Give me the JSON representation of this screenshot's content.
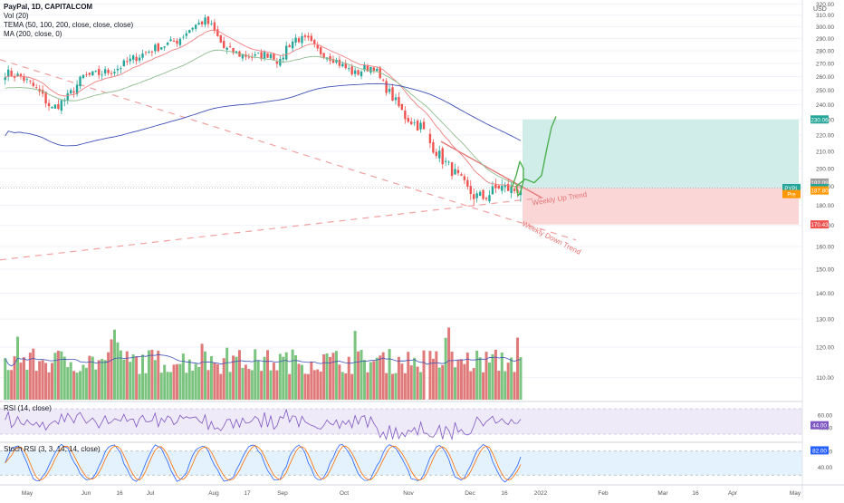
{
  "header": {
    "title": "PayPal, 1D, CAPITALCOM",
    "indicators": [
      "Vol (20)",
      "TEMA (50, 100, 200, close, close, close)",
      "MA (200, close, 0)"
    ]
  },
  "currency": "USD",
  "rsi_label": "RSI (14, close)",
  "stoch_label": "Stoch RSI (3, 3, 14, 14, close)",
  "symbol_tag": "PYPL",
  "pre_tag": "Pre",
  "colors": {
    "up": "#26a69a",
    "down": "#ef5350",
    "vol_up": "#7bc47f",
    "vol_down": "#e07a7a",
    "ema_red": "#f08080",
    "ema_green": "#8fbc8f",
    "ma_blue": "#3f51b5",
    "rsi_line": "#7e57c2",
    "stoch_k": "#2962ff",
    "stoch_d": "#ff6d00",
    "target_zone": "#d1ede9",
    "stop_zone": "#fbd6d6",
    "projection": "#4caf50"
  },
  "chart_data": [
    {
      "type": "candlestick",
      "name": "PayPal, 1D, CAPITALCOM",
      "currency": "USD",
      "y_scale": "log",
      "ylim": [
        103,
        322
      ],
      "y_ticks": [
        110,
        120,
        130,
        140,
        150,
        160,
        170,
        180,
        190,
        200,
        210,
        220,
        230,
        240,
        250,
        260,
        270,
        280,
        290,
        300,
        310,
        320
      ],
      "x_labels": [
        "May",
        "Jun",
        "16",
        "Jul",
        "Aug",
        "17",
        "Sep",
        "Oct",
        "Nov",
        "Dec",
        "16",
        "2022",
        "Feb",
        "Mar",
        "16",
        "Apr",
        "May"
      ],
      "anchor_points": [
        [
          0,
          263
        ],
        [
          5,
          260
        ],
        [
          10,
          251
        ],
        [
          15,
          237
        ],
        [
          20,
          245
        ],
        [
          25,
          260
        ],
        [
          30,
          262
        ],
        [
          35,
          265
        ],
        [
          42,
          275
        ],
        [
          48,
          282
        ],
        [
          55,
          288
        ],
        [
          60,
          300
        ],
        [
          64,
          305
        ],
        [
          66,
          300
        ],
        [
          70,
          282
        ],
        [
          75,
          277
        ],
        [
          80,
          275
        ],
        [
          85,
          278
        ],
        [
          88,
          270
        ],
        [
          90,
          283
        ],
        [
          93,
          290
        ],
        [
          97,
          288
        ],
        [
          100,
          280
        ],
        [
          105,
          274
        ],
        [
          108,
          268
        ],
        [
          112,
          262
        ],
        [
          115,
          266
        ],
        [
          118,
          268
        ],
        [
          120,
          258
        ],
        [
          124,
          245
        ],
        [
          128,
          232
        ],
        [
          132,
          226
        ],
        [
          133,
          226
        ],
        [
          136,
          215
        ],
        [
          140,
          205
        ],
        [
          144,
          197
        ],
        [
          148,
          188
        ],
        [
          150,
          185
        ],
        [
          153,
          184
        ],
        [
          155,
          186
        ],
        [
          158,
          190
        ],
        [
          160,
          189
        ],
        [
          163,
          188
        ],
        [
          165,
          189
        ]
      ],
      "price_labels": [
        {
          "text": "230.06",
          "value": 230.06
        },
        {
          "text": "192.09",
          "value": 192.09
        },
        {
          "text": "189.11",
          "value": 189.11
        },
        {
          "text": "187.80",
          "value": 187.8
        },
        {
          "text": "170.43",
          "value": 170.43
        }
      ],
      "position_tool": {
        "entry": 189.11,
        "target": 230.06,
        "stop": 170.43
      },
      "annotations": [
        "Weekly Up Trend",
        "Weekly Down Trend"
      ]
    },
    {
      "type": "bar",
      "name": "Vol (20)",
      "note": "volume histogram with 20-period MA overlay"
    },
    {
      "type": "line",
      "name": "RSI (14, close)",
      "ylim": [
        20,
        80
      ],
      "y_ticks": [
        40,
        60
      ],
      "last_value": 44
    },
    {
      "type": "line",
      "name": "Stoch RSI (3, 3, 14, 14, close)",
      "ylim": [
        0,
        100
      ],
      "y_ticks": [
        40,
        80
      ],
      "last_value": 82
    }
  ]
}
